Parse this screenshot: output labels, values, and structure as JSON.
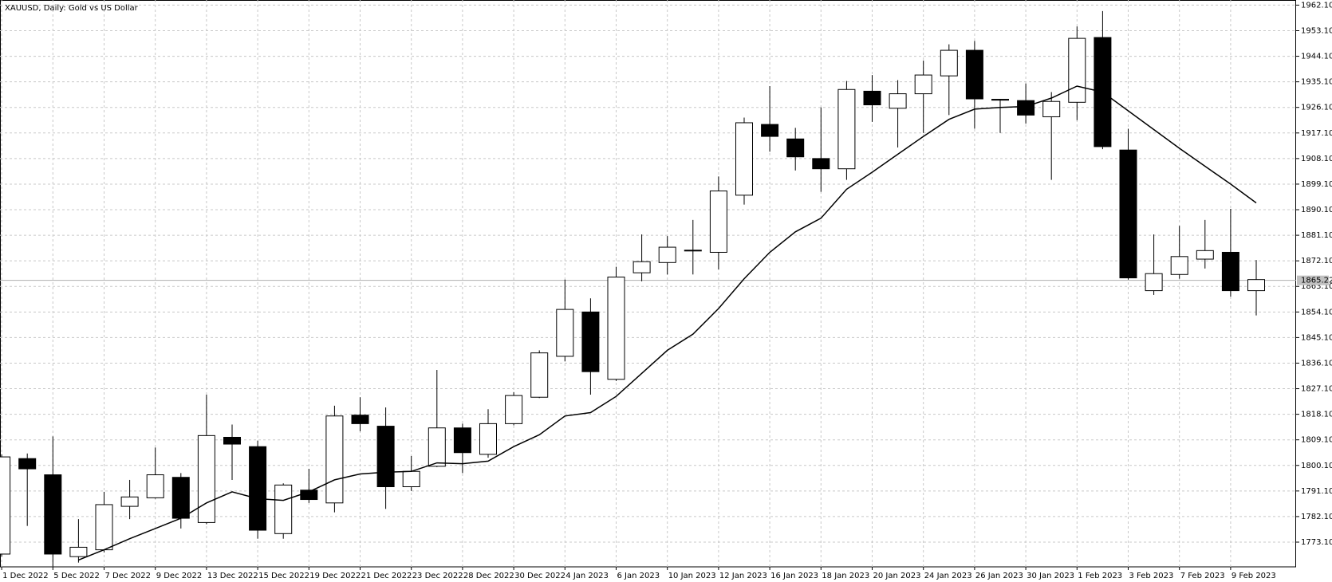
{
  "chart_data": {
    "type": "candlestick",
    "title": "XAUUSD, Daily:  Gold vs US Dollar",
    "categories": [
      "1 Dec 2022",
      null,
      "5 Dec 2022",
      null,
      "7 Dec 2022",
      null,
      "9 Dec 2022",
      null,
      "13 Dec 2022",
      null,
      "15 Dec 2022",
      null,
      "19 Dec 2022",
      null,
      "21 Dec 2022",
      null,
      "23 Dec 2022",
      null,
      "28 Dec 2022",
      null,
      "30 Dec 2022",
      null,
      "4 Jan 2023",
      null,
      "6 Jan 2023",
      null,
      "10 Jan 2023",
      null,
      "12 Jan 2023",
      null,
      "16 Jan 2023",
      null,
      "18 Jan 2023",
      null,
      "20 Jan 2023",
      null,
      "24 Jan 2023",
      null,
      "26 Jan 2023",
      null,
      "30 Jan 2023",
      null,
      "1 Feb 2023",
      null,
      "3 Feb 2023",
      null,
      "7 Feb 2023",
      null,
      "9 Feb 2023",
      null
    ],
    "open": [
      1768.9,
      1802.5,
      1796.8,
      1768.0,
      1770.4,
      1785.7,
      1788.7,
      1795.9,
      1780.0,
      1810.0,
      1806.7,
      1776.1,
      1791.4,
      1786.9,
      1817.8,
      1813.9,
      1792.6,
      1799.8,
      1813.3,
      1804.0,
      1814.8,
      1824.1,
      1838.5,
      1854.1,
      1830.4,
      1867.9,
      1871.5,
      1875.85,
      1875.1,
      1895.2,
      1920.1,
      1915.0,
      1908.1,
      1904.5,
      1931.8,
      1925.8,
      1930.9,
      1937.2,
      1946.2,
      1928.95,
      1928.5,
      1922.8,
      1927.9,
      1950.7,
      1911.1,
      1861.6,
      1867.3,
      1872.7,
      1875.1,
      1861.6
    ],
    "high": [
      1804.0,
      1804.3,
      1810.3,
      1781.2,
      1790.8,
      1795.0,
      1806.4,
      1797.4,
      1825.0,
      1814.5,
      1808.8,
      1793.8,
      1798.9,
      1821.1,
      1824.1,
      1820.5,
      1803.4,
      1833.7,
      1814.8,
      1819.9,
      1825.9,
      1840.6,
      1865.5,
      1858.9,
      1870.0,
      1881.4,
      1880.8,
      1886.5,
      1901.8,
      1922.5,
      1933.6,
      1918.9,
      1926.1,
      1935.4,
      1937.5,
      1935.7,
      1942.6,
      1948.3,
      1949.5,
      1929.1,
      1934.5,
      1931.5,
      1954.6,
      1960.0,
      1918.6,
      1881.4,
      1884.4,
      1886.5,
      1890.4,
      1872.4
    ],
    "low": [
      1768.0,
      1778.8,
      1764.4,
      1765.9,
      1769.5,
      1781.2,
      1788.4,
      1777.9,
      1779.4,
      1795.0,
      1774.3,
      1774.3,
      1786.9,
      1783.6,
      1812.1,
      1784.8,
      1791.1,
      1799.5,
      1797.4,
      1802.8,
      1814.2,
      1823.8,
      1836.7,
      1825.0,
      1829.8,
      1864.9,
      1867.3,
      1867.3,
      1869.1,
      1891.9,
      1910.5,
      1903.9,
      1896.4,
      1900.6,
      1921.0,
      1912.0,
      1917.1,
      1923.4,
      1918.6,
      1917.1,
      1920.4,
      1900.6,
      1921.6,
      1911.4,
      1865.5,
      1860.1,
      1865.8,
      1869.4,
      1859.5,
      1852.9
    ],
    "close": [
      1803.1,
      1798.9,
      1768.9,
      1771.3,
      1786.3,
      1789.0,
      1796.8,
      1781.5,
      1810.6,
      1807.6,
      1777.3,
      1793.2,
      1788.1,
      1817.5,
      1814.8,
      1792.6,
      1798.0,
      1813.3,
      1804.6,
      1814.8,
      1824.7,
      1839.7,
      1855.0,
      1833.1,
      1866.4,
      1871.8,
      1876.9,
      1875.85,
      1896.7,
      1920.7,
      1915.9,
      1908.7,
      1904.5,
      1932.4,
      1927.0,
      1930.9,
      1937.5,
      1946.2,
      1929.1,
      1928.65,
      1923.4,
      1928.2,
      1950.4,
      1912.3,
      1866.1,
      1867.6,
      1873.6,
      1875.7,
      1861.6,
      1865.5
    ],
    "ma_values": [
      null,
      null,
      null,
      1766.8,
      1770.4,
      1774.3,
      1777.9,
      1781.5,
      1786.9,
      1790.8,
      1788.4,
      1787.8,
      1790.8,
      1795.0,
      1797.1,
      1797.7,
      1798.0,
      1801.0,
      1800.7,
      1801.6,
      1806.7,
      1810.9,
      1817.5,
      1818.7,
      1824.4,
      1832.5,
      1840.6,
      1846.3,
      1855.3,
      1865.8,
      1875.1,
      1882.3,
      1887.1,
      1897.3,
      1903.3,
      1909.6,
      1915.9,
      1921.9,
      1925.5,
      1926.1,
      1926.4,
      1929.4,
      1933.6,
      1931.5,
      1924.9,
      1918.3,
      1911.7,
      1905.4,
      1899.1,
      1892.5
    ],
    "up_color": "#ffffff",
    "down_color": "#000000",
    "line_color": "#000000",
    "last_price": 1865.22,
    "ylim": [
      1764.4,
      1963.9
    ],
    "yticks": [
      {
        "value": 1962.1,
        "label": "1962.10"
      },
      {
        "value": 1953.1,
        "label": "1953.10"
      },
      {
        "value": 1944.1,
        "label": "1944.10"
      },
      {
        "value": 1935.1,
        "label": "1935.10"
      },
      {
        "value": 1926.1,
        "label": "1926.10"
      },
      {
        "value": 1917.1,
        "label": "1917.10"
      },
      {
        "value": 1908.1,
        "label": "1908.10"
      },
      {
        "value": 1899.1,
        "label": "1899.10"
      },
      {
        "value": 1890.1,
        "label": "1890.10"
      },
      {
        "value": 1881.1,
        "label": "1881.10"
      },
      {
        "value": 1872.1,
        "label": "1872.10"
      },
      {
        "value": 1863.1,
        "label": "1863.10"
      },
      {
        "value": 1854.1,
        "label": "1854.10"
      },
      {
        "value": 1845.1,
        "label": "1845.10"
      },
      {
        "value": 1836.1,
        "label": "1836.10"
      },
      {
        "value": 1827.1,
        "label": "1827.10"
      },
      {
        "value": 1818.1,
        "label": "1818.10"
      },
      {
        "value": 1809.1,
        "label": "1809.10"
      },
      {
        "value": 1800.1,
        "label": "1800.10"
      },
      {
        "value": 1791.1,
        "label": "1791.10"
      },
      {
        "value": 1782.1,
        "label": "1782.10"
      },
      {
        "value": 1773.1,
        "label": "1773.10"
      }
    ],
    "grid": true
  }
}
